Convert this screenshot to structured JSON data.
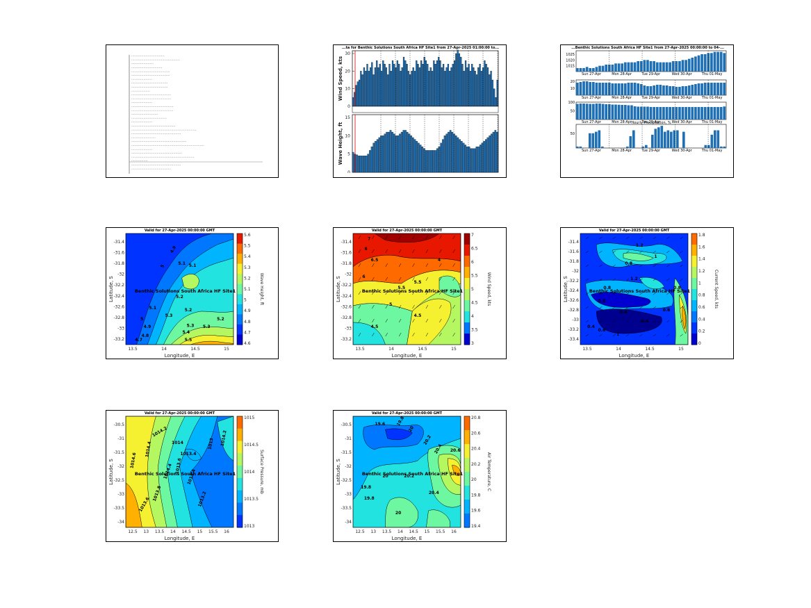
{
  "text_panel": {
    "lines": [
      "..............................",
      "............................................",
      "....................",
      "............................",
      "...................................",
      "...................................",
      "...................",
      ".................................",
      ".................................",
      ".................",
      "....................................",
      "....................................",
      "...................",
      "......................................",
      "......................................",
      "........................",
      "................................",
      "...................",
      "........................................",
      "...........................................................",
      ".............................................",
      "......................",
      "..................................................",
      "..................................................................",
      "...................",
      "..............................................",
      ".........................................................",
      "...............",
      ".............................................",
      "...................................."
    ]
  },
  "wind_wave": {
    "title": "...ta for Benthic Solutions South Africa HF Site1 from 27-Apr-2025 01:00:00 to...",
    "wind_ylabel": "Wind Speed, kts",
    "wave_ylabel": "Wave Height, ft",
    "wind_yticks": [
      "0",
      "10",
      "20",
      "30"
    ],
    "wave_yticks": [
      "0",
      "5",
      "10",
      "15"
    ],
    "wind_values": [
      5,
      8,
      12,
      14,
      15,
      20,
      18,
      22,
      20,
      24,
      20,
      22,
      25,
      18,
      22,
      26,
      22,
      24,
      20,
      26,
      24,
      22,
      18,
      24,
      20,
      26,
      24,
      22,
      26,
      24,
      20,
      22,
      28,
      26,
      24,
      20,
      18,
      20,
      22,
      20,
      26,
      24,
      22,
      26,
      24,
      28,
      26,
      24,
      20,
      22,
      20,
      26,
      24,
      26,
      28,
      26,
      22,
      24,
      20,
      22,
      24,
      20,
      22,
      24,
      26,
      30,
      32,
      30,
      28,
      24,
      20,
      26,
      22,
      24,
      20,
      24,
      22,
      20,
      18,
      22,
      24,
      20,
      22,
      26,
      24,
      22,
      18,
      20,
      15,
      10,
      5,
      15
    ],
    "wave_values": [
      5.5,
      5,
      4.8,
      4.5,
      4.5,
      4.5,
      4.5,
      4.5,
      5,
      6,
      7,
      8,
      8.5,
      9,
      9.5,
      10,
      10,
      10.5,
      11,
      11,
      11.5,
      11,
      10.5,
      10,
      10,
      10.5,
      11,
      11.5,
      11.5,
      11,
      10.5,
      10,
      9.5,
      9,
      8.5,
      8,
      7.5,
      7,
      6.5,
      6,
      6,
      6,
      6,
      6,
      6,
      6.5,
      7,
      8,
      9,
      10,
      10.5,
      11,
      11.5,
      11,
      10.5,
      10,
      9.5,
      9,
      8.5,
      8,
      7.5,
      7,
      7,
      6.5,
      6.5,
      6.5,
      7,
      7,
      7.5,
      8,
      8.5,
      9,
      9.5,
      10,
      10.5,
      11,
      11.5,
      11
    ]
  },
  "met_stack": {
    "title": "...Benthic Solutions South Africa HF Site1 from 27-Apr-2025 00:00:00 to 04-...",
    "date_ticks": [
      "Sun 27-Apr",
      "Mon 28-Apr",
      "Tue 29-Apr",
      "Wed 30-Apr",
      "Thu 01-May"
    ],
    "p1_yticks": [
      "1025",
      "1020",
      "1015"
    ],
    "p1_values": [
      1013,
      1013,
      1013,
      1014,
      1013,
      1013,
      1014,
      1015,
      1015,
      1016,
      1016,
      1016,
      1017,
      1017,
      1017,
      1018,
      1018,
      1018,
      1018,
      1019,
      1019,
      1020,
      1020,
      1019,
      1019,
      1018,
      1018,
      1018,
      1018,
      1018,
      1019,
      1019,
      1019,
      1020,
      1020,
      1021,
      1022,
      1023,
      1024,
      1025,
      1025,
      1026,
      1026,
      1027,
      1027,
      1027,
      1026
    ],
    "p2_yticks": [
      "20",
      "10"
    ],
    "p2_values": [
      18,
      19,
      20,
      20,
      19,
      19,
      18,
      18,
      18,
      18,
      18,
      17,
      17,
      17,
      17,
      17,
      18,
      18,
      18,
      17,
      16,
      14,
      13,
      13,
      14,
      15,
      15,
      14,
      14,
      13,
      13,
      12,
      12,
      13,
      13,
      14,
      15,
      16,
      17,
      17,
      18,
      18,
      18,
      18,
      18,
      18,
      18
    ],
    "p3_yticks": [
      "100",
      "50"
    ],
    "p3_values": [
      90,
      92,
      92,
      91,
      90,
      90,
      92,
      92,
      90,
      88,
      88,
      86,
      86,
      85,
      84,
      84,
      82,
      82,
      76,
      74,
      74,
      74,
      74,
      72,
      72,
      72,
      72,
      72,
      72,
      72,
      72,
      72,
      72,
      72,
      72,
      72,
      72,
      72,
      72,
      72,
      72,
      72,
      72,
      72,
      72,
      72,
      75
    ],
    "p4_yticks": [
      "50"
    ],
    "p4_values": [
      5,
      5,
      0,
      0,
      50,
      50,
      55,
      60,
      5,
      0,
      0,
      0,
      0,
      0,
      0,
      0,
      5,
      40,
      60,
      0,
      0,
      5,
      10,
      0,
      45,
      65,
      70,
      75,
      55,
      60,
      55,
      60,
      60,
      0,
      55,
      0,
      0,
      0,
      0,
      0,
      0,
      10,
      10,
      45,
      60,
      60,
      5,
      5
    ],
    "p4_title": "Hourly Precipitation, %"
  },
  "contour_title": "Valid for 27-Apr-2025 00:00:00 GMT",
  "site_label": "Benthic Solutions South Africa HF Site1",
  "lat_label": "Latitude, S",
  "lon_label": "Longitude, E",
  "maps": [
    {
      "name": "wave-height-map",
      "colorbar_label": "Wave Height, ft",
      "cb_ticks": [
        "5.6",
        "5.5",
        "5.4",
        "5.3",
        "5.2",
        "5.1",
        "5",
        "4.9",
        "4.8",
        "4.7",
        "4.6"
      ],
      "yticks": [
        "-31.4",
        "-31.6",
        "-31.8",
        "-32",
        "-32.2",
        "-32.4",
        "-32.6",
        "-32.8",
        "-33",
        "-33.2"
      ],
      "xticks": [
        "13.5",
        "14",
        "14.5",
        "15"
      ],
      "contour_labels": [
        "4.9",
        "5",
        "5.1",
        "5.2",
        "5.3",
        "5.1",
        "5.2",
        "5.3",
        "5.4",
        "5.3",
        "5.5",
        "5.2",
        "5.1",
        "5",
        "4.9",
        "4.8",
        "4.7"
      ]
    },
    {
      "name": "wind-speed-map",
      "colorbar_label": "Wind Speed, kts",
      "cb_ticks": [
        "7",
        "6.5",
        "6",
        "5.5",
        "5",
        "4.5",
        "4",
        "3.5",
        "3"
      ],
      "yticks": [
        "-31.4",
        "-31.6",
        "-31.8",
        "-32",
        "-32.2",
        "-32.4",
        "-32.6",
        "-32.8",
        "-33",
        "-33.2"
      ],
      "xticks": [
        "13.5",
        "14",
        "14.5",
        "15"
      ],
      "contour_labels": [
        "7",
        "6.5",
        "6",
        "5.5",
        "5",
        "4.5",
        "4",
        "5.5",
        "4.5",
        "6"
      ]
    },
    {
      "name": "current-speed-map",
      "colorbar_label": "Current Speed, kts",
      "cb_ticks": [
        "1.8",
        "1.6",
        "1.4",
        "1.2",
        "1",
        "0.8",
        "0.6",
        "0.4",
        "0.2",
        "0"
      ],
      "yticks": [
        "-31.4",
        "-31.6",
        "-31.8",
        "-32",
        "-32.2",
        "-32.4",
        "-32.6",
        "-32.8",
        "-33",
        "-33.2",
        "-33.4"
      ],
      "xticks": [
        "13.5",
        "14",
        "14.5",
        "15"
      ],
      "contour_labels": [
        "1.2",
        "1",
        "0.8",
        "0.8",
        "1.2",
        "0.6",
        "0.4",
        "0.4",
        "0.6",
        "0.8",
        "1",
        "0.6",
        "0.4"
      ]
    },
    {
      "name": "surface-pressure-map",
      "colorbar_label": "Surface Pressure, mb",
      "cb_ticks": [
        "1015",
        "1014.5",
        "1014",
        "1013.5",
        "1013"
      ],
      "yticks": [
        "-30.5",
        "-31",
        "-31.5",
        "-32",
        "-32.5",
        "-33",
        "-33.5",
        "-34"
      ],
      "xticks": [
        "12.5",
        "13",
        "13.5",
        "14",
        "14.5",
        "15",
        "15.5",
        "16"
      ],
      "contour_labels": [
        "1014.6",
        "1014.4",
        "1014.2",
        "1014",
        "1013.8",
        "1013.6",
        "1013.4",
        "1013.2",
        "1013",
        "1014.2",
        "1014.4",
        "1013.6",
        "1013.4"
      ]
    },
    {
      "name": "air-temperature-map",
      "colorbar_label": "Air Temperature, C",
      "cb_ticks": [
        "20.8",
        "20.6",
        "20.4",
        "20.2",
        "20",
        "19.8",
        "19.6",
        "19.4"
      ],
      "yticks": [
        "-30.5",
        "-31",
        "-31.5",
        "-32",
        "-32.5",
        "-33",
        "-33.5",
        "-34"
      ],
      "xticks": [
        "12.5",
        "13",
        "13.5",
        "14",
        "14.5",
        "15",
        "15.5",
        "16"
      ],
      "contour_labels": [
        "19.6",
        "19.8",
        "20",
        "20.2",
        "20.4",
        "20.6",
        "19.8",
        "20",
        "20.2",
        "19.8",
        "20.4",
        "20"
      ]
    }
  ]
}
